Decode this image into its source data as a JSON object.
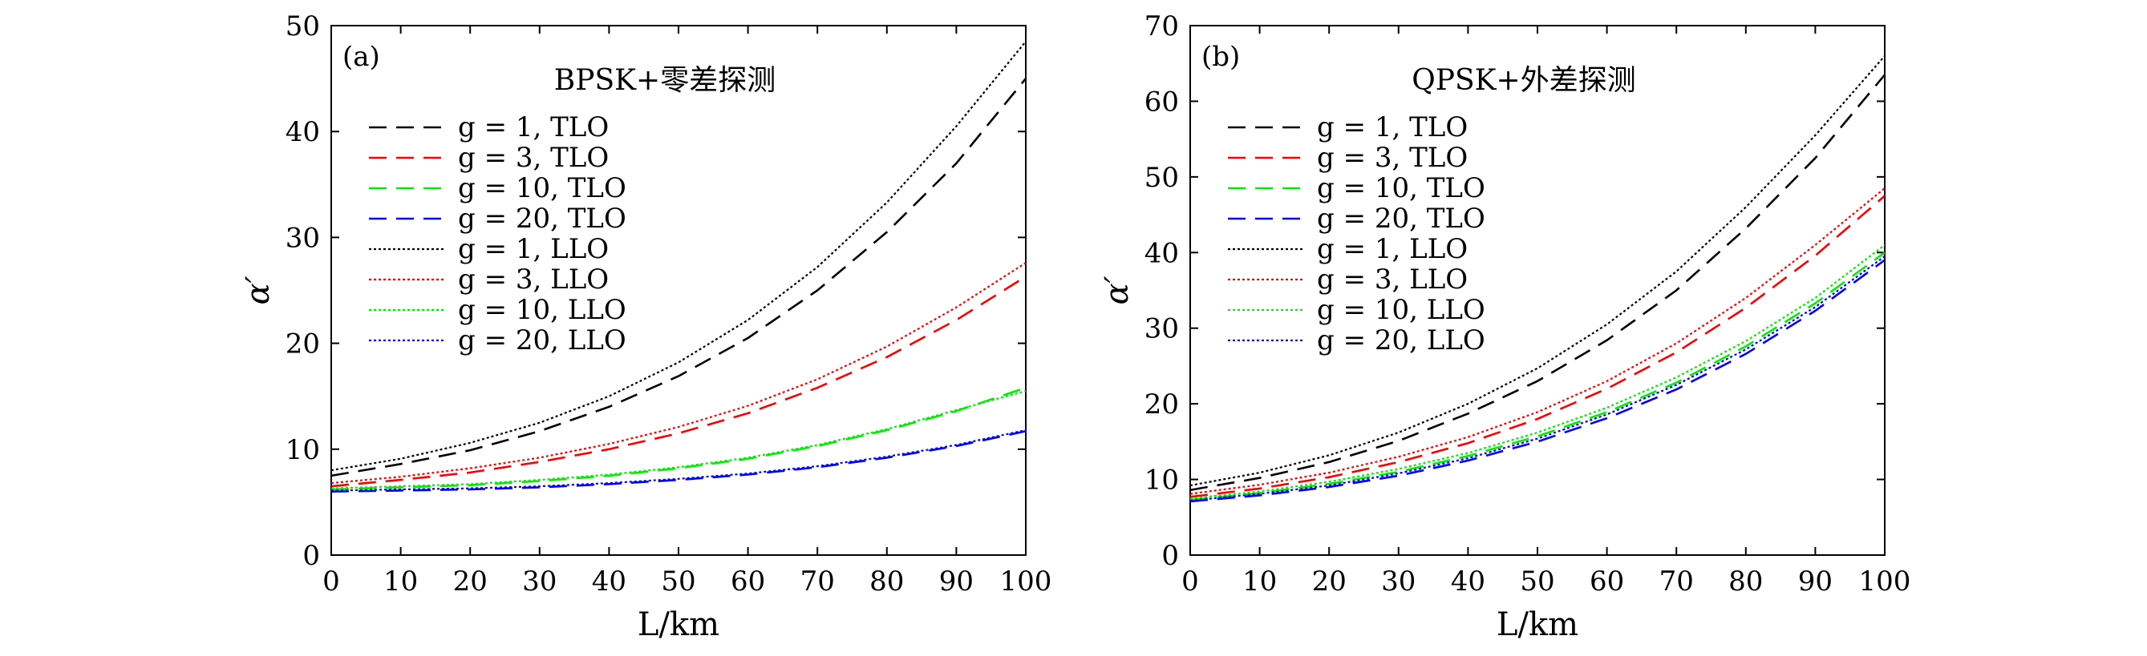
{
  "chart_data": [
    {
      "type": "line",
      "panel_label": "(a)",
      "title": "BPSK+零差探测",
      "xlabel": "L/km",
      "ylabel": "α′",
      "xlim": [
        0,
        100
      ],
      "ylim": [
        0,
        50
      ],
      "xticks": [
        0,
        10,
        20,
        30,
        40,
        50,
        60,
        70,
        80,
        90,
        100
      ],
      "yticks": [
        0,
        10,
        20,
        30,
        40,
        50
      ],
      "grid": false,
      "legend_position": "upper-left",
      "x": [
        0,
        10,
        20,
        30,
        40,
        50,
        60,
        70,
        80,
        90,
        100
      ],
      "series": [
        {
          "name": "g = 1, TLO",
          "style": "dashed",
          "color": "#000000",
          "values": [
            7.5,
            8.6,
            9.9,
            11.7,
            14.0,
            16.9,
            20.5,
            25.0,
            30.5,
            37.0,
            45.0
          ]
        },
        {
          "name": "g = 3, TLO",
          "style": "dashed",
          "color": "#ff0000",
          "values": [
            6.5,
            7.1,
            7.8,
            8.8,
            10.0,
            11.5,
            13.4,
            15.8,
            18.7,
            22.2,
            26.3
          ]
        },
        {
          "name": "g = 10, TLO",
          "style": "dashed",
          "color": "#00ee00",
          "values": [
            6.2,
            6.4,
            6.6,
            7.0,
            7.5,
            8.2,
            9.1,
            10.3,
            11.8,
            13.6,
            15.8
          ]
        },
        {
          "name": "g = 20, TLO",
          "style": "dashed",
          "color": "#0000ff",
          "values": [
            6.0,
            6.1,
            6.2,
            6.4,
            6.7,
            7.1,
            7.6,
            8.3,
            9.2,
            10.3,
            11.7
          ]
        },
        {
          "name": "g = 1, LLO",
          "style": "dotted",
          "color": "#000000",
          "values": [
            8.0,
            9.1,
            10.6,
            12.5,
            15.0,
            18.2,
            22.2,
            27.2,
            33.3,
            40.5,
            48.5
          ]
        },
        {
          "name": "g = 3, LLO",
          "style": "dotted",
          "color": "#ff0000",
          "values": [
            6.8,
            7.4,
            8.2,
            9.2,
            10.5,
            12.1,
            14.1,
            16.6,
            19.7,
            23.4,
            27.6
          ]
        },
        {
          "name": "g = 10, LLO",
          "style": "dotted",
          "color": "#00ee00",
          "values": [
            6.3,
            6.5,
            6.7,
            7.1,
            7.6,
            8.3,
            9.2,
            10.4,
            11.9,
            13.7,
            15.5
          ]
        },
        {
          "name": "g = 20, LLO",
          "style": "dotted",
          "color": "#0000ff",
          "values": [
            6.1,
            6.2,
            6.3,
            6.5,
            6.8,
            7.2,
            7.7,
            8.4,
            9.3,
            10.4,
            11.8
          ]
        }
      ]
    },
    {
      "type": "line",
      "panel_label": "(b)",
      "title": "QPSK+外差探测",
      "xlabel": "L/km",
      "ylabel": "α′",
      "xlim": [
        0,
        100
      ],
      "ylim": [
        0,
        70
      ],
      "xticks": [
        0,
        10,
        20,
        30,
        40,
        50,
        60,
        70,
        80,
        90,
        100
      ],
      "yticks": [
        0,
        10,
        20,
        30,
        40,
        50,
        60,
        70
      ],
      "grid": false,
      "legend_position": "upper-left",
      "x": [
        0,
        10,
        20,
        30,
        40,
        50,
        60,
        70,
        80,
        90,
        100
      ],
      "series": [
        {
          "name": "g = 1, TLO",
          "style": "dashed",
          "color": "#000000",
          "values": [
            8.6,
            10.2,
            12.3,
            15.1,
            18.7,
            23.0,
            28.4,
            35.0,
            43.2,
            52.5,
            63.5
          ]
        },
        {
          "name": "g = 3, TLO",
          "style": "dashed",
          "color": "#ff0000",
          "values": [
            7.7,
            8.8,
            10.3,
            12.3,
            14.8,
            18.0,
            22.0,
            26.8,
            32.7,
            39.6,
            47.5
          ]
        },
        {
          "name": "g = 10, TLO",
          "style": "dashed",
          "color": "#00ee00",
          "values": [
            7.3,
            8.2,
            9.4,
            11.0,
            13.1,
            15.7,
            18.9,
            22.8,
            27.6,
            33.3,
            40.0
          ]
        },
        {
          "name": "g = 20, TLO",
          "style": "dashed",
          "color": "#0000ff",
          "values": [
            7.1,
            7.9,
            9.0,
            10.5,
            12.5,
            15.0,
            18.1,
            21.9,
            26.6,
            32.3,
            39.0
          ]
        },
        {
          "name": "g = 1, LLO",
          "style": "dotted",
          "color": "#000000",
          "values": [
            9.2,
            10.9,
            13.2,
            16.2,
            20.0,
            24.7,
            30.5,
            37.5,
            46.0,
            55.5,
            66.0
          ]
        },
        {
          "name": "g = 3, LLO",
          "style": "dotted",
          "color": "#ff0000",
          "values": [
            8.1,
            9.3,
            10.9,
            13.0,
            15.6,
            18.9,
            23.0,
            28.0,
            34.0,
            41.0,
            48.5
          ]
        },
        {
          "name": "g = 10, LLO",
          "style": "dotted",
          "color": "#00ee00",
          "values": [
            7.5,
            8.4,
            9.7,
            11.4,
            13.5,
            16.2,
            19.5,
            23.5,
            28.3,
            34.0,
            41.0
          ]
        },
        {
          "name": "g = 20, LLO",
          "style": "dotted",
          "color": "#0000ff",
          "values": [
            7.2,
            8.1,
            9.2,
            10.8,
            12.8,
            15.4,
            18.6,
            22.5,
            27.2,
            32.8,
            39.5
          ]
        }
      ]
    }
  ]
}
